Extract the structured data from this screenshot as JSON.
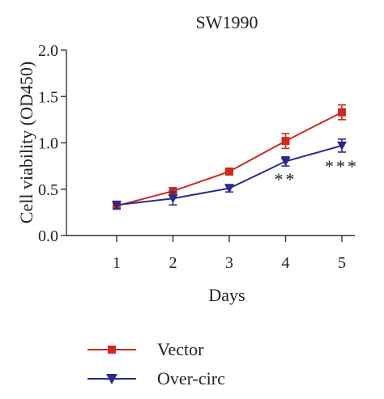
{
  "chart_data": {
    "type": "line",
    "title": "SW1990",
    "xlabel": "Days",
    "ylabel": "Cell viability (OD450)",
    "x": [
      1,
      2,
      3,
      4,
      5
    ],
    "xlim": [
      0.6,
      5.5
    ],
    "ylim": [
      0,
      2.0
    ],
    "yticks": [
      "0.0",
      "0.5",
      "1.0",
      "1.5",
      "2.0"
    ],
    "xticks": [
      "1",
      "2",
      "3",
      "4",
      "5"
    ],
    "grid": false,
    "legend": "bottom-left",
    "series": [
      {
        "name": "Vector",
        "color": "#cc2a1e",
        "marker": "square",
        "values": [
          0.32,
          0.48,
          0.69,
          1.02,
          1.33
        ],
        "errors": [
          0.02,
          0.03,
          0.02,
          0.08,
          0.08
        ]
      },
      {
        "name": "Over-circ",
        "color": "#2b2a8c",
        "marker": "triangle-down",
        "values": [
          0.33,
          0.4,
          0.51,
          0.8,
          0.97
        ],
        "errors": [
          0.04,
          0.07,
          0.04,
          0.05,
          0.07
        ]
      }
    ],
    "annotations": [
      {
        "x": 4,
        "text": "**"
      },
      {
        "x": 5,
        "text": "***"
      }
    ]
  }
}
